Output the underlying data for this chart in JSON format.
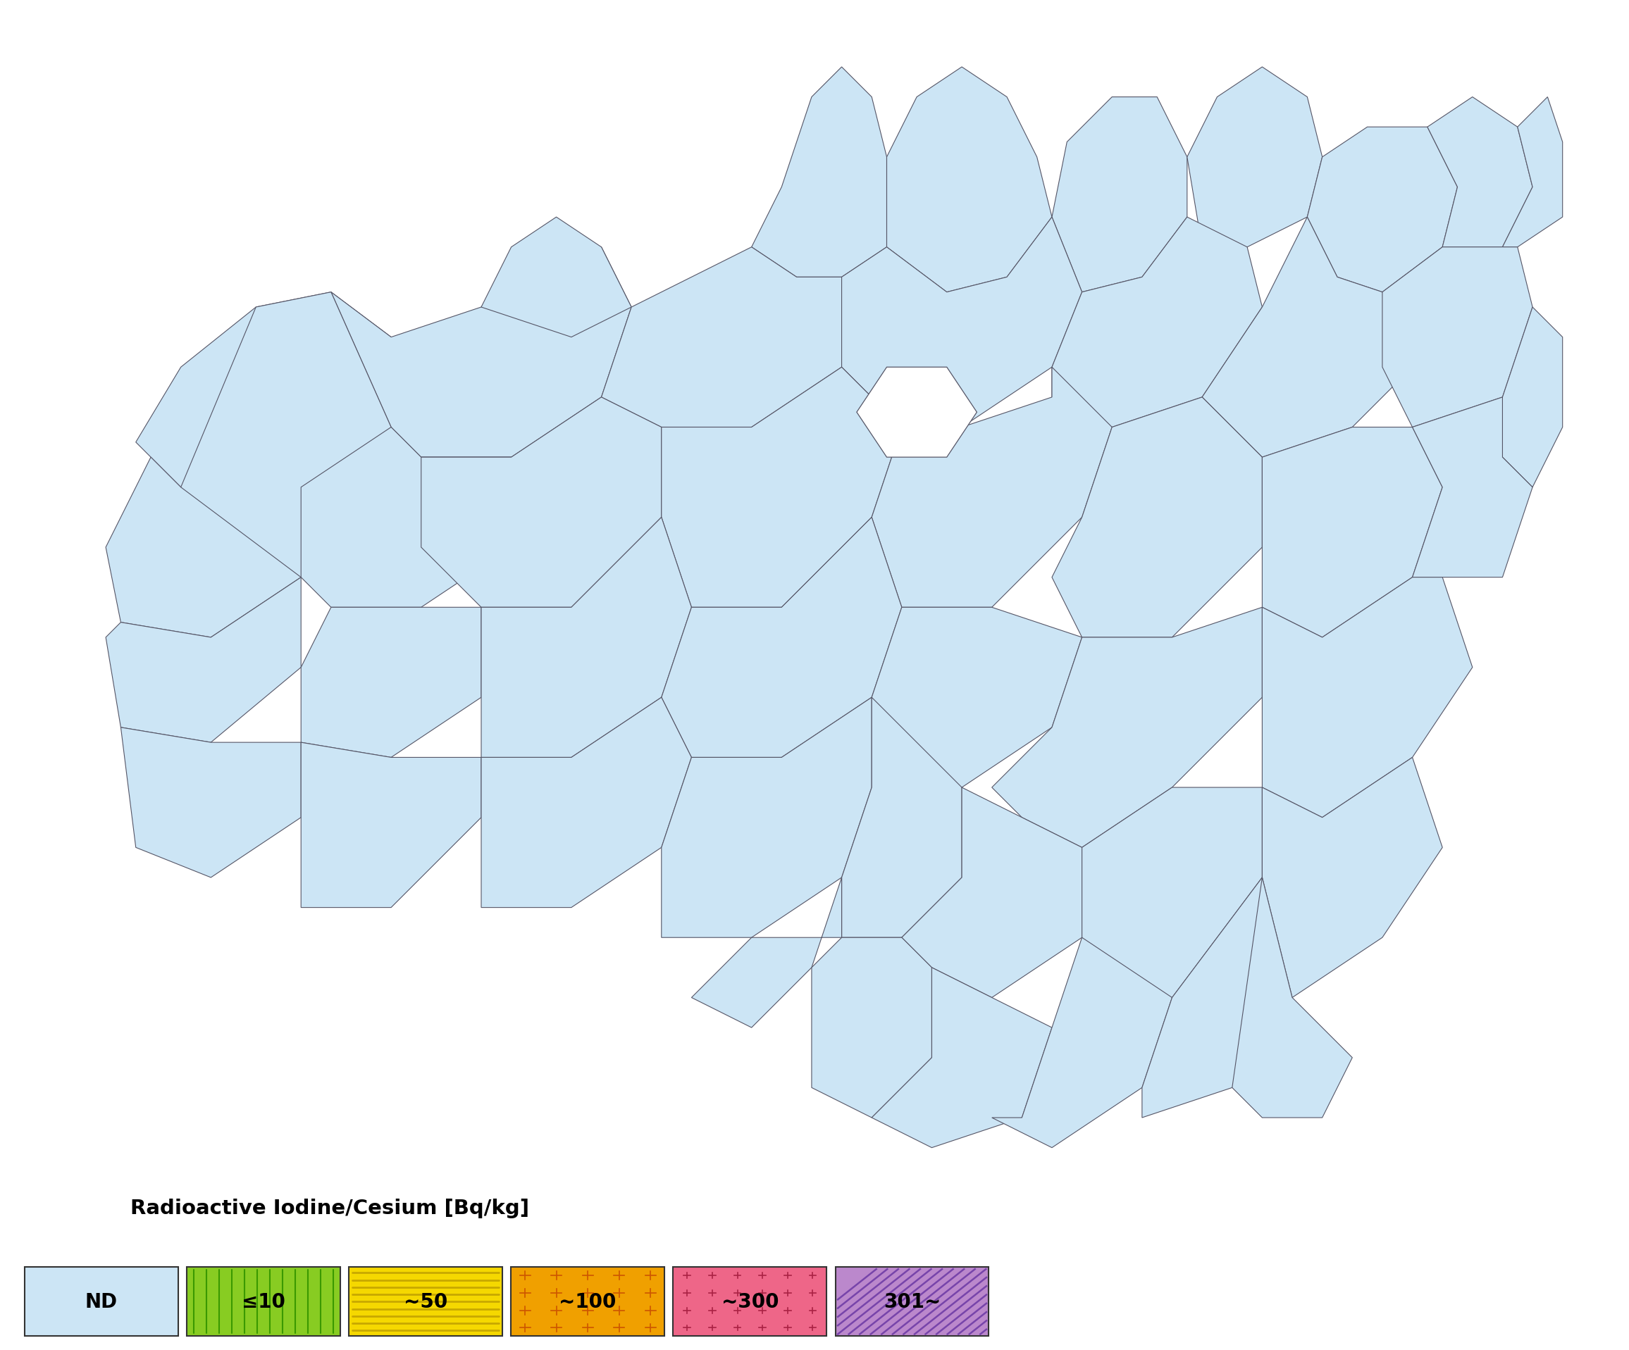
{
  "title": "Radioactive Iodine/Cesium [Bq/kg]",
  "background_color": "#ffffff",
  "map_fill_color": "#cce5f5",
  "map_edge_color": "#555566",
  "legend_labels": [
    "ND",
    "≤10",
    "~50",
    "~100",
    "~300",
    "301~"
  ],
  "legend_colors": [
    "#cce5f5",
    "#88cc22",
    "#f5d800",
    "#f0a000",
    "#ee6688",
    "#bb88cc"
  ],
  "legend_hatch": [
    "",
    "|||",
    "---",
    "++",
    "....",
    "////"
  ],
  "legend_hatch_colors": [
    "",
    "#448800",
    "#bbaa00",
    "#cc7700",
    "#cc3355",
    "#885599"
  ],
  "fig_width": 24.75,
  "fig_height": 19.56
}
